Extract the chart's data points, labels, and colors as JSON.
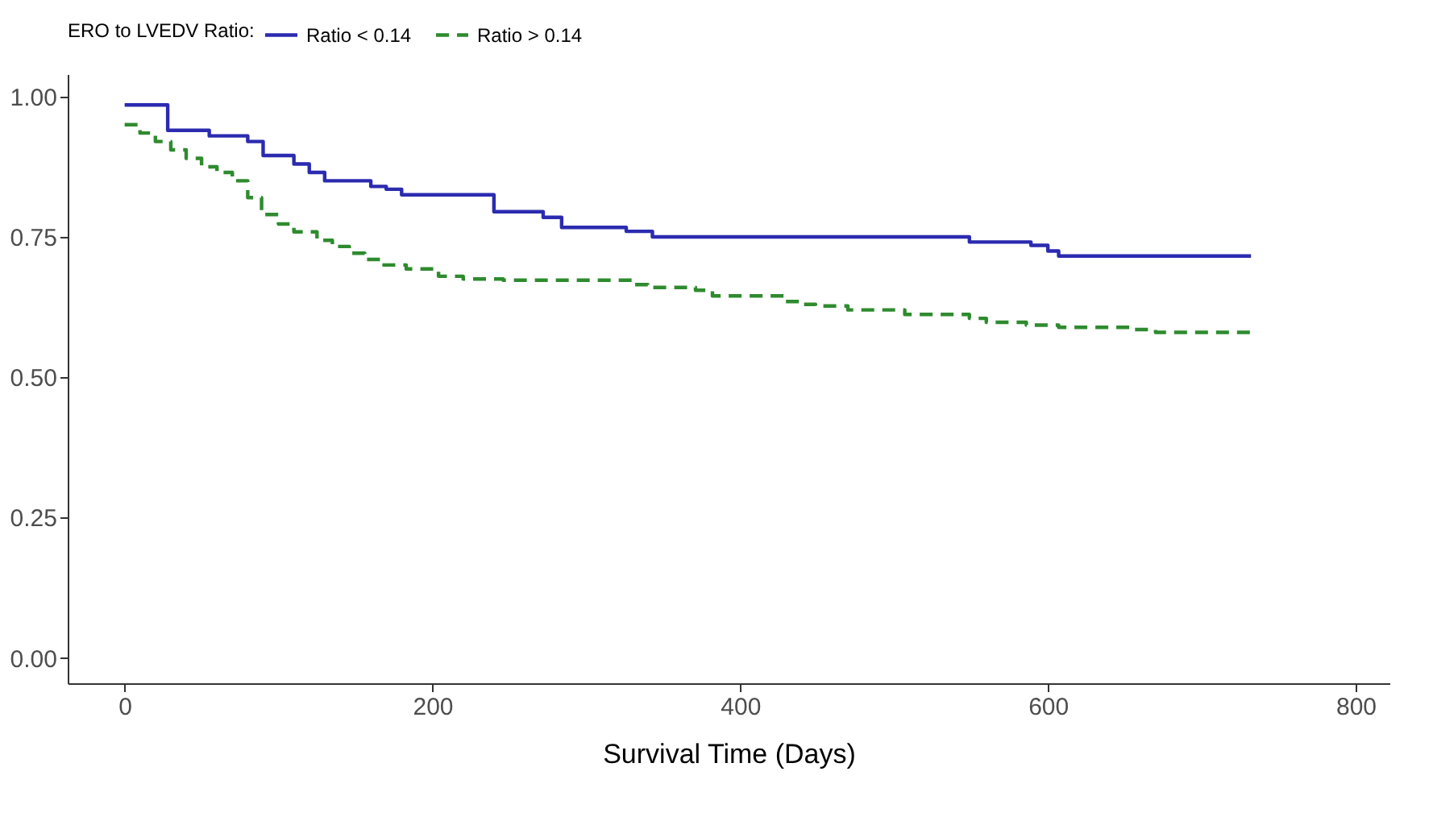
{
  "chart_data": {
    "type": "step",
    "xlabel": "Survival Time (Days)",
    "legend_title": "ERO to LVEDV Ratio:",
    "legend": "top",
    "grid": false,
    "xlim": [
      -37,
      822
    ],
    "xticks": [
      0,
      200,
      400,
      600,
      800
    ],
    "ylim": [
      -0.045,
      1.04
    ],
    "yticks": [
      {
        "value": 0,
        "label": "0.00"
      },
      {
        "value": 0.25,
        "label": "0.25"
      },
      {
        "value": 0.5,
        "label": "0.50"
      },
      {
        "value": 0.75,
        "label": "0.75"
      },
      {
        "value": 1,
        "label": "1.00"
      }
    ],
    "series": [
      {
        "name": "Ratio < 0.14",
        "color": "#2b2bb0",
        "line_style": "solid",
        "x": [
          0,
          28,
          55,
          80,
          90,
          110,
          120,
          130,
          160,
          170,
          180,
          240,
          272,
          284,
          326,
          343,
          549,
          589,
          600,
          607,
          732
        ],
        "values": [
          0.985,
          0.94,
          0.93,
          0.92,
          0.895,
          0.88,
          0.865,
          0.85,
          0.84,
          0.835,
          0.825,
          0.795,
          0.785,
          0.767,
          0.76,
          0.75,
          0.741,
          0.735,
          0.725,
          0.716,
          0.716
        ]
      },
      {
        "name": "Ratio > 0.14",
        "color": "#2e8b2e",
        "line_style": "dashed",
        "x": [
          0,
          10,
          20,
          30,
          40,
          50,
          60,
          70,
          80,
          89,
          100,
          110,
          125,
          135,
          146,
          156,
          167,
          183,
          204,
          220,
          246,
          330,
          340,
          371,
          382,
          429,
          440,
          449,
          470,
          507,
          549,
          560,
          586,
          607,
          654,
          670,
          732
        ],
        "values": [
          0.95,
          0.935,
          0.92,
          0.905,
          0.89,
          0.875,
          0.865,
          0.85,
          0.82,
          0.79,
          0.773,
          0.759,
          0.744,
          0.733,
          0.721,
          0.71,
          0.7,
          0.693,
          0.68,
          0.675,
          0.673,
          0.665,
          0.66,
          0.655,
          0.645,
          0.635,
          0.63,
          0.627,
          0.62,
          0.612,
          0.605,
          0.598,
          0.593,
          0.589,
          0.585,
          0.58,
          0.58
        ]
      }
    ]
  }
}
